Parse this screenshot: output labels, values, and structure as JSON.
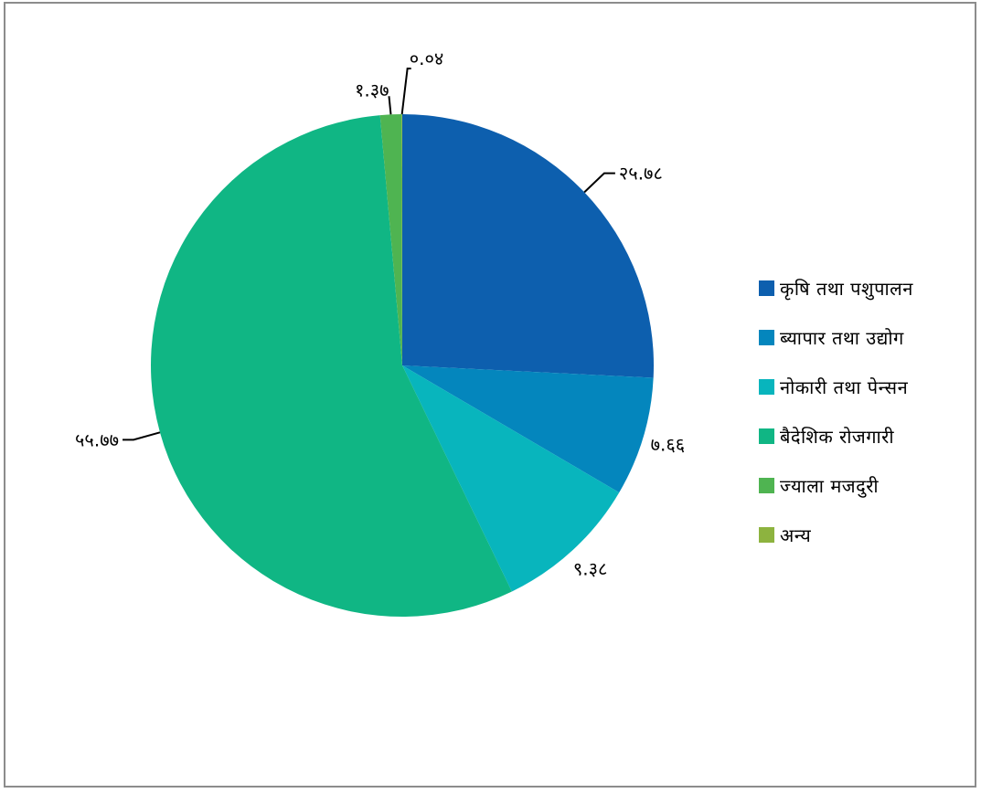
{
  "chart_data": {
    "type": "pie",
    "categories": [
      "कृषि तथा पशुपालन",
      "ब्यापार तथा उद्योग",
      "नोकारी तथा पेन्सन",
      "बैदेशिक रोजगारी",
      "ज्याला मजदुरी",
      "अन्य"
    ],
    "values": [
      25.78,
      7.66,
      9.38,
      55.77,
      1.37,
      0.04
    ],
    "data_labels": [
      "२५.७८",
      "७.६६",
      "९.३८",
      "५५.७७",
      "१.३७",
      "०.०४"
    ],
    "colors": [
      "#0d5fae",
      "#0486bd",
      "#08b5bd",
      "#10b684",
      "#4fb451",
      "#8db33f"
    ],
    "legend_position": "right"
  }
}
